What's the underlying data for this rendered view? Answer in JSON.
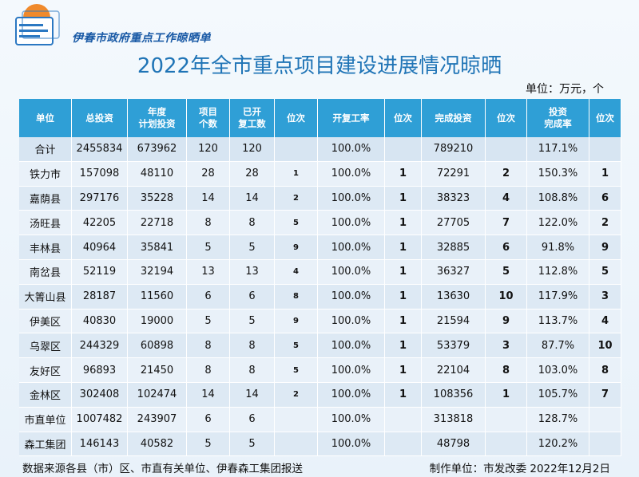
{
  "header": {
    "org_name": "伊春市政府重点工作晾晒单",
    "title": "2022年全市重点项目建设进展情况晾晒",
    "unit": "单位：万元，个"
  },
  "table": {
    "columns": [
      {
        "l1": "单位",
        "l2": ""
      },
      {
        "l1": "总投资",
        "l2": ""
      },
      {
        "l1": "年度",
        "l2": "计划投资"
      },
      {
        "l1": "项目",
        "l2": "个数"
      },
      {
        "l1": "已开",
        "l2": "复工数"
      },
      {
        "l1": "位次",
        "l2": ""
      },
      {
        "l1": "开复工率",
        "l2": ""
      },
      {
        "l1": "位次",
        "l2": ""
      },
      {
        "l1": "完成投资",
        "l2": ""
      },
      {
        "l1": "位次",
        "l2": ""
      },
      {
        "l1": "投资",
        "l2": "完成率"
      },
      {
        "l1": "位次",
        "l2": ""
      }
    ],
    "rows": [
      [
        "合计",
        "2455834",
        "673962",
        "120",
        "120",
        "",
        "100.0%",
        "",
        "789210",
        "",
        "117.1%",
        ""
      ],
      [
        "铁力市",
        "157098",
        "48110",
        "28",
        "28",
        "1",
        "100.0%",
        "1",
        "72291",
        "2",
        "150.3%",
        "1"
      ],
      [
        "嘉荫县",
        "297176",
        "35228",
        "14",
        "14",
        "2",
        "100.0%",
        "1",
        "38323",
        "4",
        "108.8%",
        "6"
      ],
      [
        "汤旺县",
        "42205",
        "22718",
        "8",
        "8",
        "5",
        "100.0%",
        "1",
        "27705",
        "7",
        "122.0%",
        "2"
      ],
      [
        "丰林县",
        "40964",
        "35841",
        "5",
        "5",
        "9",
        "100.0%",
        "1",
        "32885",
        "6",
        "91.8%",
        "9"
      ],
      [
        "南岔县",
        "52119",
        "32194",
        "13",
        "13",
        "4",
        "100.0%",
        "1",
        "36327",
        "5",
        "112.8%",
        "5"
      ],
      [
        "大箐山县",
        "28187",
        "11560",
        "6",
        "6",
        "8",
        "100.0%",
        "1",
        "13630",
        "10",
        "117.9%",
        "3"
      ],
      [
        "伊美区",
        "40830",
        "19000",
        "5",
        "5",
        "9",
        "100.0%",
        "1",
        "21594",
        "9",
        "113.7%",
        "4"
      ],
      [
        "乌翠区",
        "244329",
        "60898",
        "8",
        "8",
        "5",
        "100.0%",
        "1",
        "53379",
        "3",
        "87.7%",
        "10"
      ],
      [
        "友好区",
        "96893",
        "21450",
        "8",
        "8",
        "5",
        "100.0%",
        "1",
        "22104",
        "8",
        "103.0%",
        "8"
      ],
      [
        "金林区",
        "302408",
        "102474",
        "14",
        "14",
        "2",
        "100.0%",
        "1",
        "108356",
        "1",
        "105.7%",
        "7"
      ],
      [
        "市直单位",
        "1007482",
        "243907",
        "6",
        "6",
        "",
        "100.0%",
        "",
        "313818",
        "",
        "128.7%",
        ""
      ],
      [
        "森工集团",
        "146143",
        "40582",
        "5",
        "5",
        "",
        "100.0%",
        "",
        "48798",
        "",
        "120.2%",
        ""
      ]
    ]
  },
  "footer": {
    "source": "数据来源各县（市）区、市直有关单位、伊春森工集团报送",
    "maker": "制作单位：市发改委  2022年12月2日"
  },
  "colors": {
    "header_bg": "#2f9fd6",
    "title": "#1f74b6",
    "rank_red": "#e3101e"
  }
}
